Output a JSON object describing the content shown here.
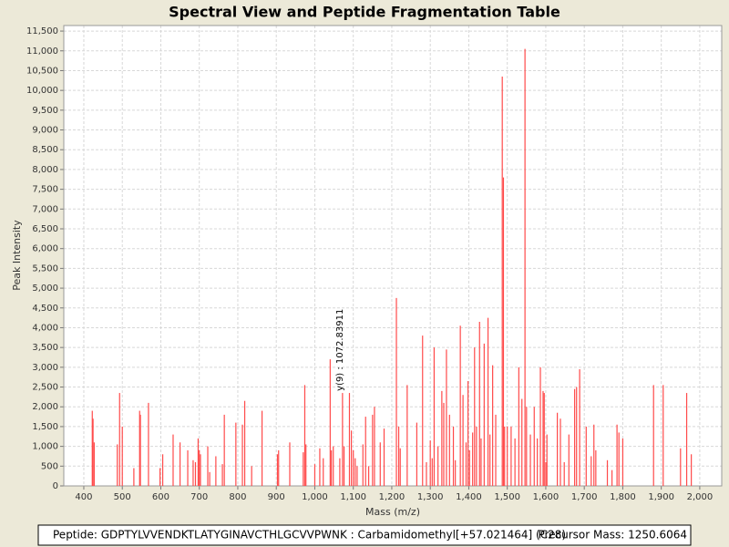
{
  "chart_data": {
    "type": "stem",
    "title": "Spectral View and Peptide Fragmentation Table",
    "x_label": "Mass (m/z)",
    "y_label": "Peak Intensity",
    "color": "#ff4a4a",
    "grid": true,
    "xlim": [
      348,
      2057
    ],
    "ylim": [
      0,
      11640
    ],
    "xticks": [
      400,
      500,
      600,
      700,
      800,
      900,
      {
        "value": 1000,
        "label": "1,000"
      },
      {
        "value": 1100,
        "label": "1,100"
      },
      {
        "value": 1200,
        "label": "1,200"
      },
      {
        "value": 1300,
        "label": "1,300"
      },
      {
        "value": 1400,
        "label": "1,400"
      },
      {
        "value": 1500,
        "label": "1,500"
      },
      {
        "value": 1600,
        "label": "1,600"
      },
      {
        "value": 1700,
        "label": "1,700"
      },
      {
        "value": 1800,
        "label": "1,800"
      },
      {
        "value": 1900,
        "label": "1,900"
      },
      {
        "value": 2000,
        "label": "2,000"
      }
    ],
    "yticks": [
      0,
      500,
      {
        "value": 1000,
        "label": "1,000"
      },
      {
        "value": 1500,
        "label": "1,500"
      },
      {
        "value": 2000,
        "label": "2,000"
      },
      {
        "value": 2500,
        "label": "2,500"
      },
      {
        "value": 3000,
        "label": "3,000"
      },
      {
        "value": 3500,
        "label": "3,500"
      },
      {
        "value": 4000,
        "label": "4,000"
      },
      {
        "value": 4500,
        "label": "4,500"
      },
      {
        "value": 5000,
        "label": "5,000"
      },
      {
        "value": 5500,
        "label": "5,500"
      },
      {
        "value": 6000,
        "label": "6,000"
      },
      {
        "value": 6500,
        "label": "6,500"
      },
      {
        "value": 7000,
        "label": "7,000"
      },
      {
        "value": 7500,
        "label": "7,500"
      },
      {
        "value": 8000,
        "label": "8,000"
      },
      {
        "value": 8500,
        "label": "8,500"
      },
      {
        "value": 9000,
        "label": "9,000"
      },
      {
        "value": 9500,
        "label": "9,500"
      },
      {
        "value": 10000,
        "label": "10,000"
      },
      {
        "value": 10500,
        "label": "10,500"
      },
      {
        "value": 11000,
        "label": "11,000"
      },
      {
        "value": 11500,
        "label": "11,500"
      }
    ],
    "x": [
      422,
      424,
      427,
      487,
      493,
      500,
      530,
      545,
      547,
      568,
      598,
      605,
      632,
      650,
      670,
      684,
      690,
      697,
      700,
      703,
      722,
      727,
      743,
      760,
      765,
      795,
      812,
      818,
      836,
      863,
      903,
      906,
      935,
      970,
      974,
      977,
      1000,
      1013,
      1022,
      1040,
      1043,
      1048,
      1065,
      1072,
      1076,
      1090,
      1095,
      1100,
      1105,
      1110,
      1125,
      1132,
      1140,
      1150,
      1155,
      1170,
      1180,
      1212,
      1218,
      1222,
      1240,
      1265,
      1280,
      1290,
      1300,
      1305,
      1310,
      1320,
      1330,
      1335,
      1342,
      1350,
      1360,
      1365,
      1378,
      1385,
      1393,
      1398,
      1402,
      1410,
      1415,
      1420,
      1428,
      1432,
      1440,
      1450,
      1455,
      1462,
      1470,
      1487,
      1490,
      1493,
      1500,
      1510,
      1520,
      1530,
      1538,
      1546,
      1550,
      1560,
      1570,
      1578,
      1586,
      1593,
      1596,
      1600,
      1603,
      1630,
      1638,
      1648,
      1660,
      1675,
      1680,
      1688,
      1705,
      1718,
      1725,
      1730,
      1760,
      1772,
      1785,
      1790,
      1800,
      1880,
      1905,
      1950,
      1966,
      1978
    ],
    "values": [
      1900,
      1700,
      1100,
      1050,
      2350,
      1500,
      450,
      1900,
      1800,
      2100,
      450,
      800,
      1300,
      1100,
      900,
      650,
      600,
      1200,
      900,
      800,
      1000,
      350,
      750,
      550,
      1800,
      1600,
      1550,
      2150,
      500,
      1900,
      800,
      900,
      1100,
      850,
      2550,
      1050,
      550,
      950,
      700,
      3200,
      900,
      1000,
      700,
      2350,
      1000,
      2350,
      1400,
      900,
      700,
      500,
      1050,
      1750,
      500,
      1800,
      2000,
      1100,
      1450,
      4750,
      1500,
      950,
      2550,
      1600,
      3800,
      600,
      1150,
      700,
      3500,
      1000,
      2400,
      2100,
      3450,
      1800,
      1500,
      650,
      4050,
      2300,
      1100,
      2650,
      900,
      1350,
      3500,
      1500,
      4150,
      1200,
      3600,
      4250,
      1300,
      3050,
      1800,
      10350,
      7800,
      1500,
      1500,
      1500,
      1200,
      3000,
      2200,
      11050,
      2000,
      1300,
      2000,
      1200,
      3000,
      2400,
      2350,
      600,
      1300,
      1850,
      1700,
      600,
      1300,
      2450,
      2500,
      2950,
      1500,
      750,
      1550,
      900,
      650,
      400,
      1550,
      1350,
      1200,
      2550,
      2550,
      950,
      2350,
      800
    ],
    "annotations": [
      {
        "text": "y(9) : 1072.83911",
        "x": 1072.83911,
        "y": 2400
      }
    ]
  },
  "footer": {
    "peptide": "Peptide: GDPTYLVVENDKTLATYGINAVCTHLGCVVPWNK : Carbamidomethyl[+57.021464] (C28)",
    "precursor": "Precursor Mass: 1250.6064"
  }
}
